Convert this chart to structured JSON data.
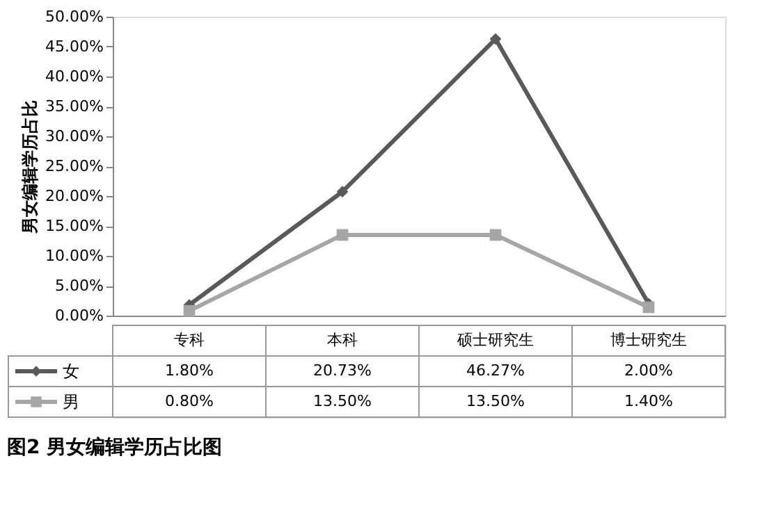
{
  "chart_data": {
    "type": "line",
    "title": "图2  男女编辑学历占比图",
    "ylabel": "男女编辑学历占比",
    "categories": [
      "专科",
      "本科",
      "硕士研究生",
      "博士研究生"
    ],
    "series": [
      {
        "name": "女",
        "color": "#595959",
        "marker": "diamond",
        "values": [
          1.8,
          20.73,
          46.27,
          2.0
        ],
        "value_labels": [
          "1.80%",
          "20.73%",
          "46.27%",
          "2.00%"
        ]
      },
      {
        "name": "男",
        "color": "#a6a6a6",
        "marker": "square",
        "values": [
          0.8,
          13.5,
          13.5,
          1.4
        ],
        "value_labels": [
          "0.80%",
          "13.50%",
          "13.50%",
          "1.40%"
        ]
      }
    ],
    "ylim": [
      0,
      50
    ],
    "yticks": [
      {
        "value": 0,
        "label": "0.00%"
      },
      {
        "value": 5,
        "label": "5.00%"
      },
      {
        "value": 10,
        "label": "10.00%"
      },
      {
        "value": 15,
        "label": "15.00%"
      },
      {
        "value": 20,
        "label": "20.00%"
      },
      {
        "value": 25,
        "label": "25.00%"
      },
      {
        "value": 30,
        "label": "30.00%"
      },
      {
        "value": 35,
        "label": "35.00%"
      },
      {
        "value": 40,
        "label": "40.00%"
      },
      {
        "value": 45,
        "label": "45.00%"
      },
      {
        "value": 50,
        "label": "50.00%"
      }
    ],
    "legend": "bottom left",
    "line_style": "solid",
    "grid": false
  }
}
